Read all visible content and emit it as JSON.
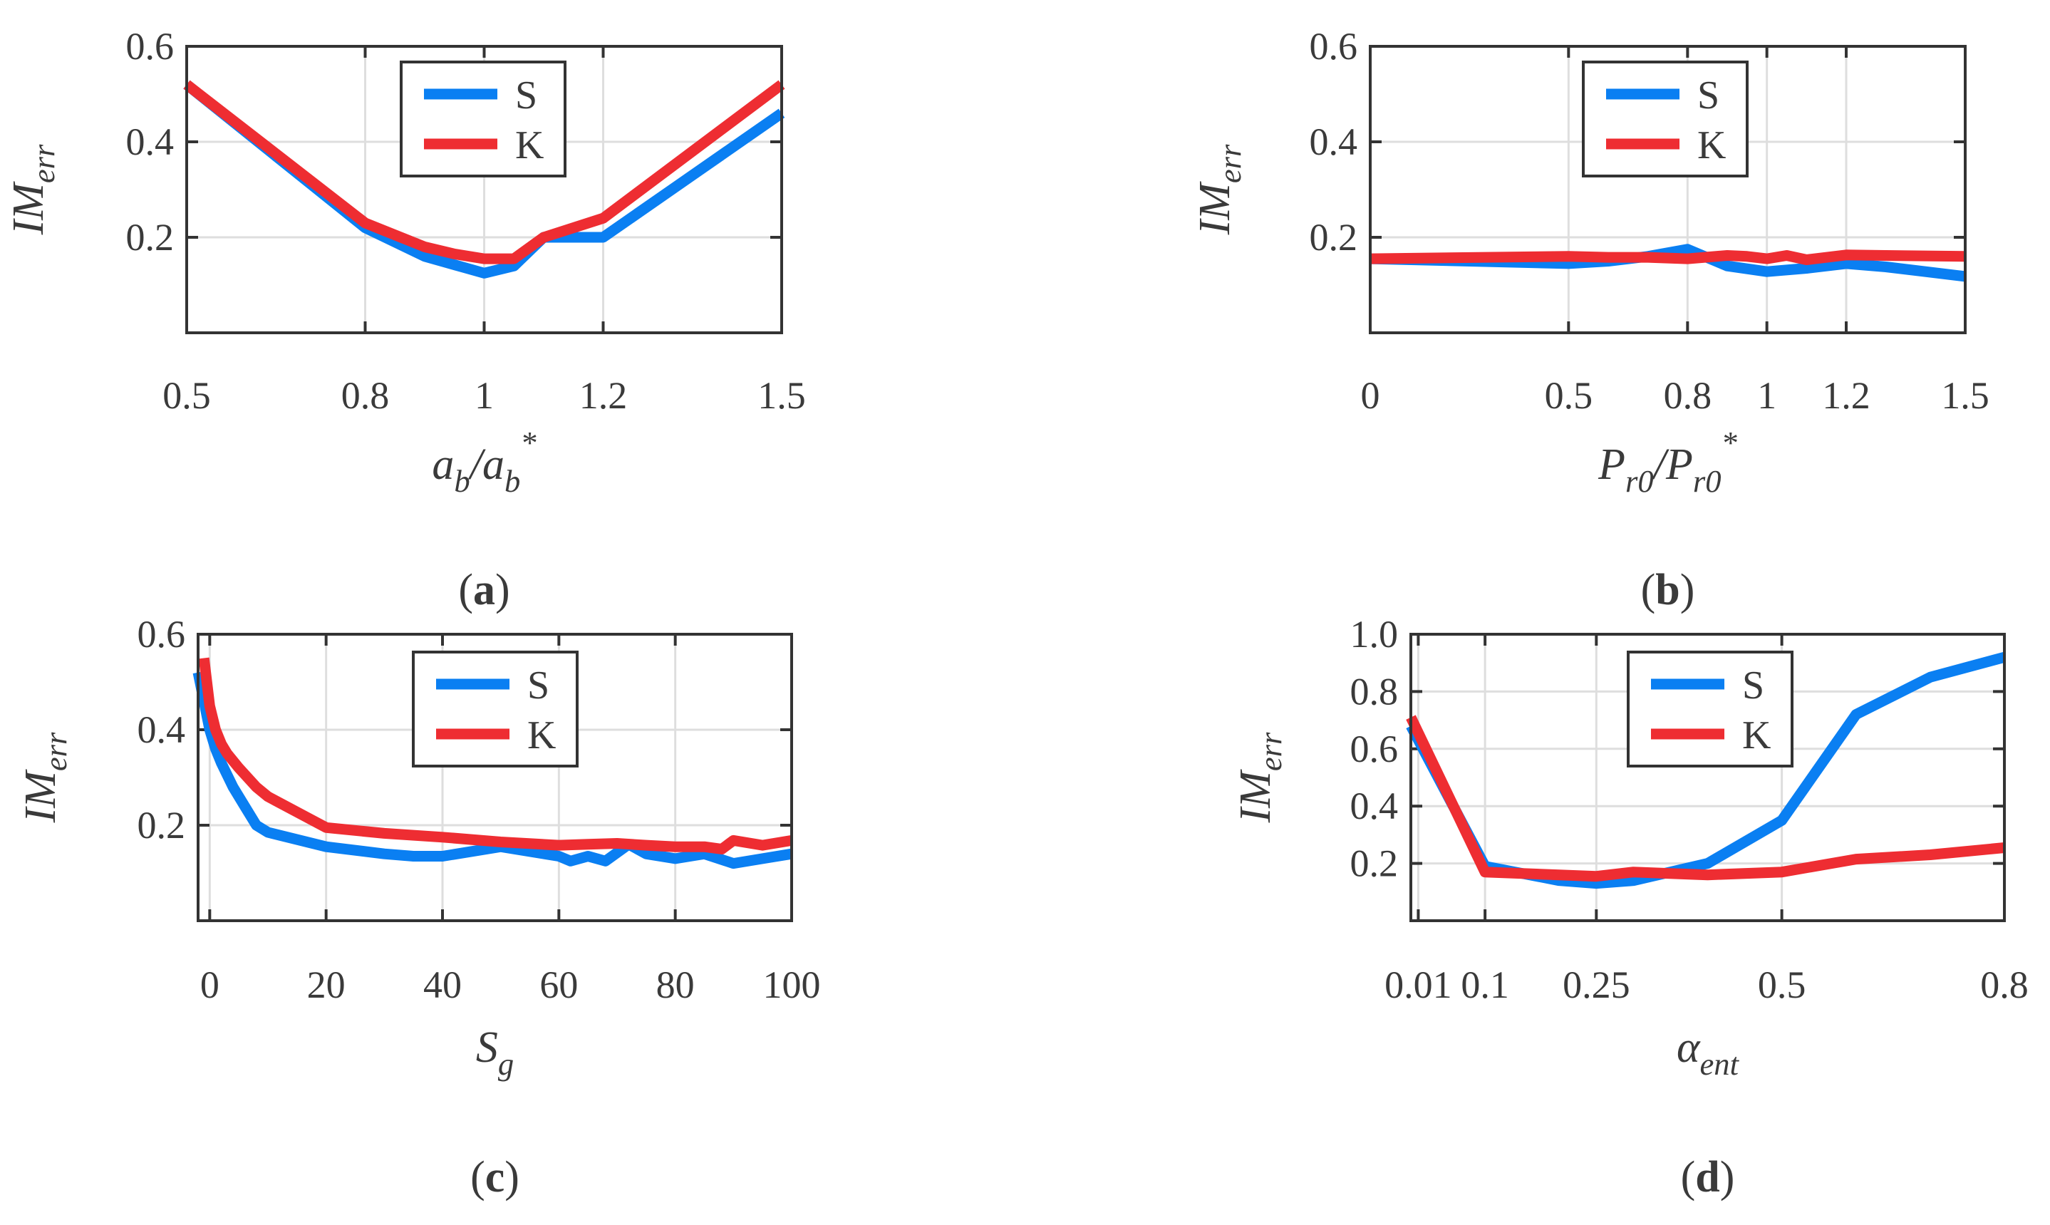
{
  "colors": {
    "S": "#0a7ff2",
    "K": "#ee2d32",
    "axis": "#333333",
    "grid": "#dedede",
    "text": "#3a3a3a"
  },
  "chart_data": [
    {
      "id": "a",
      "type": "line",
      "caption": "a",
      "xlabel": {
        "main": "a",
        "sub": "b",
        "mid": "/a",
        "sub2": "b",
        "sup": "*"
      },
      "ylabel": {
        "main": "IM",
        "sub": "err"
      },
      "xlim": [
        0.5,
        1.5
      ],
      "ylim": [
        0.0,
        0.6
      ],
      "xticks": [
        0.5,
        0.8,
        1.0,
        1.2,
        1.5
      ],
      "xtick_labels": [
        "0.5",
        "0.8",
        "1",
        "1.2",
        "1.5"
      ],
      "yticks": [
        0.2,
        0.4,
        0.6
      ],
      "ytick_labels": [
        "0.2",
        "0.4",
        "0.6"
      ],
      "legend": [
        "S",
        "K"
      ],
      "series": [
        {
          "name": "S",
          "x": [
            0.5,
            0.8,
            0.9,
            1.0,
            1.05,
            1.1,
            1.2,
            1.5
          ],
          "y": [
            0.52,
            0.22,
            0.16,
            0.125,
            0.14,
            0.2,
            0.2,
            0.46
          ]
        },
        {
          "name": "K",
          "x": [
            0.5,
            0.8,
            0.9,
            0.95,
            1.0,
            1.05,
            1.1,
            1.2,
            1.5
          ],
          "y": [
            0.52,
            0.23,
            0.18,
            0.165,
            0.155,
            0.155,
            0.2,
            0.24,
            0.52
          ]
        }
      ]
    },
    {
      "id": "b",
      "type": "line",
      "caption": "b",
      "xlabel": {
        "main": "P",
        "sub": "r0",
        "mid": "/P",
        "sub2": "r0",
        "sup": "*"
      },
      "ylabel": {
        "main": "IM",
        "sub": "err"
      },
      "xlim": [
        0.0,
        1.5
      ],
      "ylim": [
        0.0,
        0.6
      ],
      "xticks": [
        0.0,
        0.5,
        0.8,
        1.0,
        1.2,
        1.5
      ],
      "xtick_labels": [
        "0",
        "0.5",
        "0.8",
        "1",
        "1.2",
        "1.5"
      ],
      "yticks": [
        0.2,
        0.4,
        0.6
      ],
      "ytick_labels": [
        "0.2",
        "0.4",
        "0.6"
      ],
      "legend": [
        "S",
        "K"
      ],
      "series": [
        {
          "name": "S",
          "x": [
            0.0,
            0.5,
            0.6,
            0.7,
            0.8,
            0.9,
            1.0,
            1.1,
            1.2,
            1.3,
            1.4,
            1.5
          ],
          "y": [
            0.155,
            0.145,
            0.15,
            0.16,
            0.175,
            0.14,
            0.128,
            0.135,
            0.145,
            0.138,
            0.128,
            0.118
          ]
        },
        {
          "name": "K",
          "x": [
            0.0,
            0.5,
            0.6,
            0.7,
            0.8,
            0.9,
            0.95,
            1.0,
            1.05,
            1.1,
            1.2,
            1.3,
            1.5
          ],
          "y": [
            0.155,
            0.16,
            0.158,
            0.158,
            0.155,
            0.162,
            0.16,
            0.155,
            0.162,
            0.153,
            0.163,
            0.162,
            0.16
          ]
        }
      ]
    },
    {
      "id": "c",
      "type": "line",
      "caption": "c",
      "xlabel": {
        "main": "S",
        "sub": "g",
        "mid": "",
        "sub2": "",
        "sup": ""
      },
      "ylabel": {
        "main": "IM",
        "sub": "err"
      },
      "xlim": [
        -2,
        100
      ],
      "ylim": [
        0.0,
        0.6
      ],
      "xticks": [
        0,
        20,
        40,
        60,
        80,
        100
      ],
      "xtick_labels": [
        "0",
        "20",
        "40",
        "60",
        "80",
        "100"
      ],
      "yticks": [
        0.2,
        0.4,
        0.6
      ],
      "ytick_labels": [
        "0.2",
        "0.4",
        "0.6"
      ],
      "legend": [
        "S",
        "K"
      ],
      "series": [
        {
          "name": "S",
          "x": [
            -2,
            0,
            1,
            2,
            4,
            6,
            8,
            10,
            20,
            30,
            35,
            40,
            50,
            60,
            62,
            65,
            68,
            72,
            75,
            80,
            85,
            90,
            95,
            100
          ],
          "y": [
            0.52,
            0.4,
            0.36,
            0.33,
            0.28,
            0.24,
            0.2,
            0.185,
            0.155,
            0.14,
            0.135,
            0.135,
            0.155,
            0.135,
            0.125,
            0.135,
            0.125,
            0.16,
            0.14,
            0.13,
            0.14,
            0.12,
            0.13,
            0.14
          ]
        },
        {
          "name": "K",
          "x": [
            -1,
            0,
            1,
            2,
            3,
            5,
            8,
            10,
            20,
            30,
            40,
            50,
            60,
            65,
            70,
            75,
            80,
            85,
            88,
            90,
            95,
            100
          ],
          "y": [
            0.55,
            0.45,
            0.4,
            0.37,
            0.35,
            0.32,
            0.28,
            0.26,
            0.195,
            0.183,
            0.175,
            0.165,
            0.158,
            0.16,
            0.162,
            0.158,
            0.155,
            0.155,
            0.15,
            0.168,
            0.158,
            0.168
          ]
        }
      ]
    },
    {
      "id": "d",
      "type": "line",
      "caption": "d",
      "xlabel": {
        "main": "α",
        "sub": "ent",
        "mid": "",
        "sub2": "",
        "sup": ""
      },
      "ylabel": {
        "main": "IM",
        "sub": "err"
      },
      "xlim": [
        0.0,
        0.8
      ],
      "ylim": [
        0.0,
        1.0
      ],
      "xticks": [
        0.01,
        0.1,
        0.25,
        0.5,
        0.8
      ],
      "xtick_labels": [
        "0.01",
        "0.1",
        "0.25",
        "0.5",
        "0.8"
      ],
      "yticks": [
        0.2,
        0.4,
        0.6,
        0.8,
        1.0
      ],
      "ytick_labels": [
        "0.2",
        "0.4",
        "0.6",
        "0.8",
        "1.0"
      ],
      "legend": [
        "S",
        "K"
      ],
      "series": [
        {
          "name": "S",
          "x": [
            0.0,
            0.1,
            0.2,
            0.25,
            0.3,
            0.4,
            0.5,
            0.6,
            0.7,
            0.8
          ],
          "y": [
            0.68,
            0.19,
            0.14,
            0.13,
            0.14,
            0.2,
            0.35,
            0.72,
            0.85,
            0.92
          ]
        },
        {
          "name": "K",
          "x": [
            0.0,
            0.1,
            0.2,
            0.25,
            0.3,
            0.35,
            0.4,
            0.5,
            0.6,
            0.7,
            0.8
          ],
          "y": [
            0.71,
            0.17,
            0.16,
            0.155,
            0.17,
            0.165,
            0.16,
            0.17,
            0.215,
            0.23,
            0.255
          ]
        }
      ]
    }
  ]
}
